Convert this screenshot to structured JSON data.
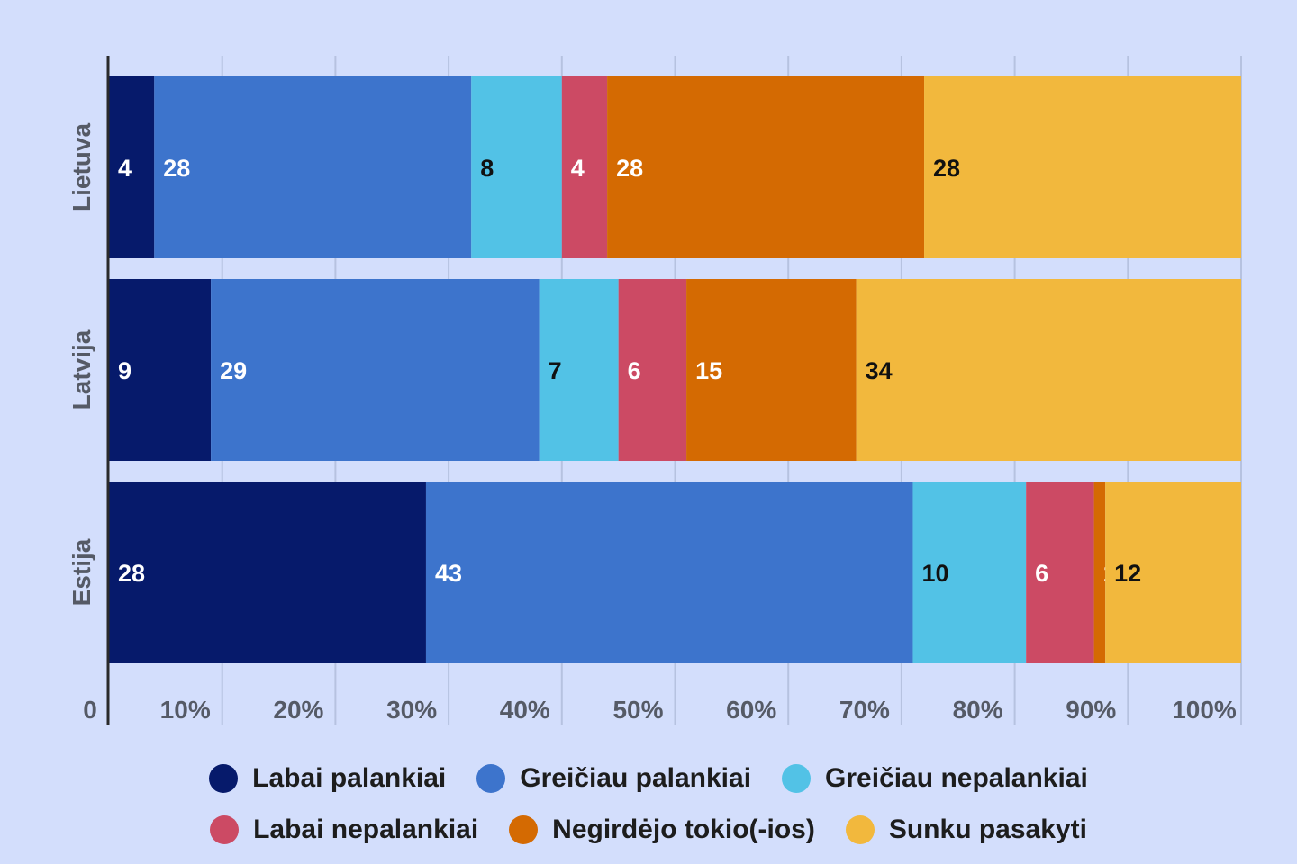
{
  "chart_data": {
    "type": "bar",
    "orientation": "horizontal",
    "stacked": true,
    "title": "",
    "categories": [
      "Lietuva",
      "Latvija",
      "Estija"
    ],
    "series": [
      {
        "name": "Labai palankiai",
        "color": "#061a6b",
        "label_color": "#ffffff",
        "values": [
          4,
          9,
          28
        ]
      },
      {
        "name": "Greičiau palankiai",
        "color": "#3d74cc",
        "label_color": "#ffffff",
        "values": [
          28,
          29,
          43
        ]
      },
      {
        "name": "Greičiau nepalankiai",
        "color": "#52c2e6",
        "label_color": "#111111",
        "values": [
          8,
          7,
          10
        ]
      },
      {
        "name": "Labai nepalankiai",
        "color": "#cc4a64",
        "label_color": "#ffffff",
        "values": [
          4,
          6,
          6
        ]
      },
      {
        "name": "Negirdėjo tokio(-ios)",
        "color": "#d46a02",
        "label_color": "#ffffff",
        "values": [
          28,
          15,
          1
        ]
      },
      {
        "name": "Sunku pasakyti",
        "color": "#f2b83d",
        "label_color": "#111111",
        "values": [
          28,
          34,
          12
        ]
      }
    ],
    "x_ticks": [
      "0",
      "10%",
      "20%",
      "30%",
      "40%",
      "50%",
      "60%",
      "70%",
      "80%",
      "90%",
      "100%"
    ],
    "xlim": [
      0,
      100
    ],
    "grid": true,
    "legend_position": "bottom"
  }
}
